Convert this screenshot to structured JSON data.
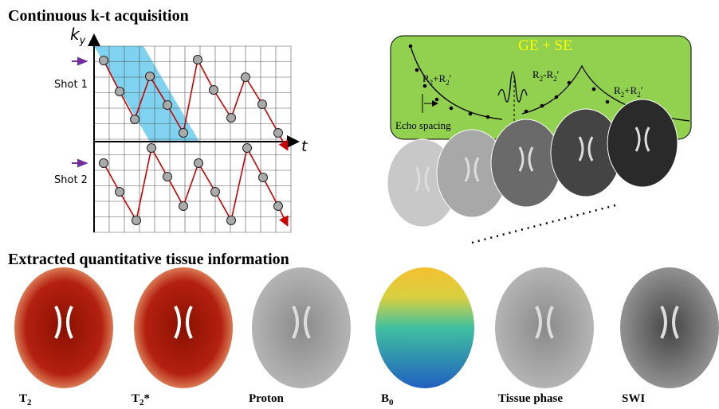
{
  "header": {
    "title": "Continuous k-t acquisition"
  },
  "kt_plot": {
    "y_axis": {
      "main": "k",
      "sub": "y"
    },
    "x_axis": "t",
    "shots": [
      "Shot 1",
      "Shot 2"
    ]
  },
  "echo_panel": {
    "title": "GE + SE",
    "labels": [
      {
        "parts": [
          "R",
          "2",
          "+R",
          "2",
          "'"
        ]
      },
      {
        "parts": [
          "R",
          "2",
          "-R",
          "2",
          "'"
        ]
      },
      {
        "parts": [
          "R",
          "2",
          "+R",
          "2",
          "'"
        ]
      }
    ],
    "echo_spacing": "Echo spacing"
  },
  "section2": {
    "title": "Extracted quantitative tissue information"
  },
  "maps": [
    {
      "main": "T",
      "sub": "2"
    },
    {
      "main": "T",
      "sub": "2",
      "suffix": "*"
    },
    {
      "main": "Proton"
    },
    {
      "main": "B",
      "sub": "0"
    },
    {
      "main": "Tissue phase"
    },
    {
      "main": "SWI"
    }
  ]
}
